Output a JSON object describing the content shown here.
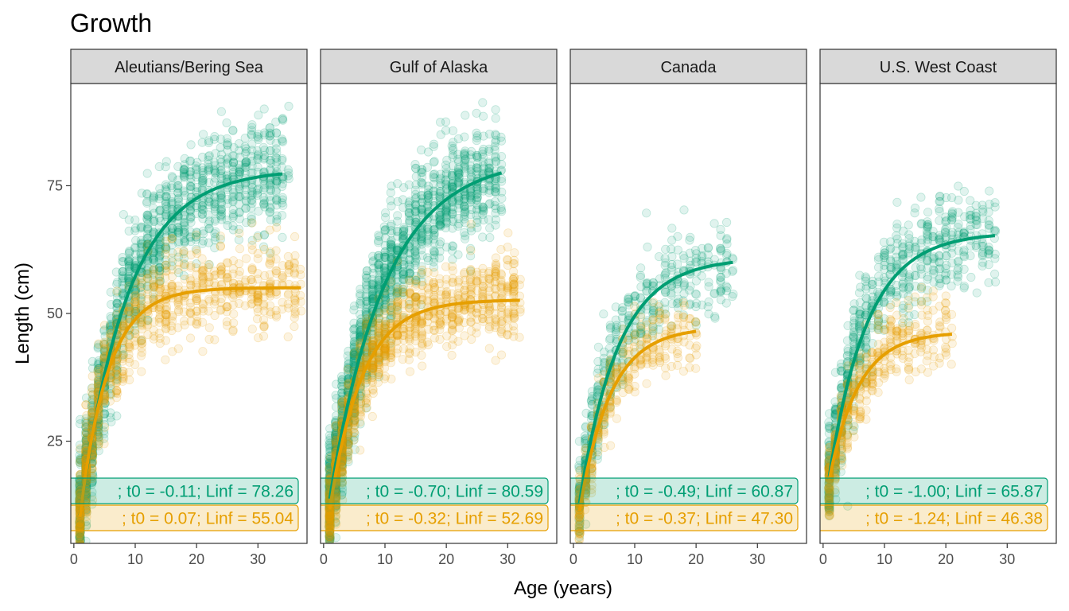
{
  "chart_data": {
    "type": "scatter",
    "title": "Growth",
    "xlabel": "Age (years)",
    "ylabel": "Length (cm)",
    "xlim": [
      -0.5,
      38
    ],
    "ylim": [
      5,
      95
    ],
    "x_ticks": [
      0,
      10,
      20,
      30
    ],
    "y_ticks": [
      25,
      50,
      75
    ],
    "grid": false,
    "legend": "none",
    "colors": {
      "female": "#009E73",
      "male": "#E69F00",
      "strip_fill": "#d9d9d9"
    },
    "panels": [
      {
        "name": "Aleutians/Bering Sea",
        "curves": [
          {
            "sex": "female",
            "x_range": [
              1,
              34
            ],
            "Linf": 78.26,
            "k": 0.13,
            "t0": -0.11
          },
          {
            "sex": "male",
            "x_range": [
              1,
              37
            ],
            "Linf": 55.04,
            "k": 0.22,
            "t0": 0.07
          }
        ],
        "labels": [
          {
            "sex": "female",
            "text": "; t0 = -0.11; Linf = 78.26"
          },
          {
            "sex": "male",
            "text": "; t0 = 0.07; Linf = 55.04"
          }
        ],
        "points": {
          "female_max_age": 35,
          "male_max_age": 37,
          "female_n": 1400,
          "male_n": 900,
          "female_sd": 5.5,
          "male_sd": 4.5
        }
      },
      {
        "name": "Gulf of Alaska",
        "curves": [
          {
            "sex": "female",
            "x_range": [
              1,
              29
            ],
            "Linf": 80.59,
            "k": 0.11,
            "t0": -0.7
          },
          {
            "sex": "male",
            "x_range": [
              1,
              32
            ],
            "Linf": 52.69,
            "k": 0.19,
            "t0": -0.32
          }
        ],
        "labels": [
          {
            "sex": "female",
            "text": "; t0 = -0.70; Linf = 80.59"
          },
          {
            "sex": "male",
            "text": "; t0 = -0.32; Linf = 52.69"
          }
        ],
        "points": {
          "female_max_age": 29,
          "male_max_age": 32,
          "female_n": 1600,
          "male_n": 1100,
          "female_sd": 5.5,
          "male_sd": 4.0
        }
      },
      {
        "name": "Canada",
        "curves": [
          {
            "sex": "female",
            "x_range": [
              1,
              26
            ],
            "Linf": 60.87,
            "k": 0.16,
            "t0": -0.49
          },
          {
            "sex": "male",
            "x_range": [
              1,
              20
            ],
            "Linf": 47.3,
            "k": 0.2,
            "t0": -0.37
          }
        ],
        "labels": [
          {
            "sex": "female",
            "text": "; t0 = -0.49; Linf = 60.87"
          },
          {
            "sex": "male",
            "text": "; t0 = -0.37; Linf = 47.30"
          }
        ],
        "points": {
          "female_max_age": 26,
          "male_max_age": 20,
          "female_n": 500,
          "male_n": 350,
          "female_sd": 4.5,
          "male_sd": 3.5
        }
      },
      {
        "name": "U.S. West Coast",
        "curves": [
          {
            "sex": "female",
            "x_range": [
              1,
              28
            ],
            "Linf": 65.87,
            "k": 0.16,
            "t0": -1.0
          },
          {
            "sex": "male",
            "x_range": [
              1,
              21
            ],
            "Linf": 46.38,
            "k": 0.21,
            "t0": -1.24
          }
        ],
        "labels": [
          {
            "sex": "female",
            "text": "; t0 = -1.00; Linf = 65.87"
          },
          {
            "sex": "male",
            "text": "; t0 = -1.24; Linf = 46.38"
          }
        ],
        "points": {
          "female_max_age": 28,
          "male_max_age": 21,
          "female_n": 700,
          "male_n": 450,
          "female_sd": 5.0,
          "male_sd": 3.5
        }
      }
    ]
  }
}
